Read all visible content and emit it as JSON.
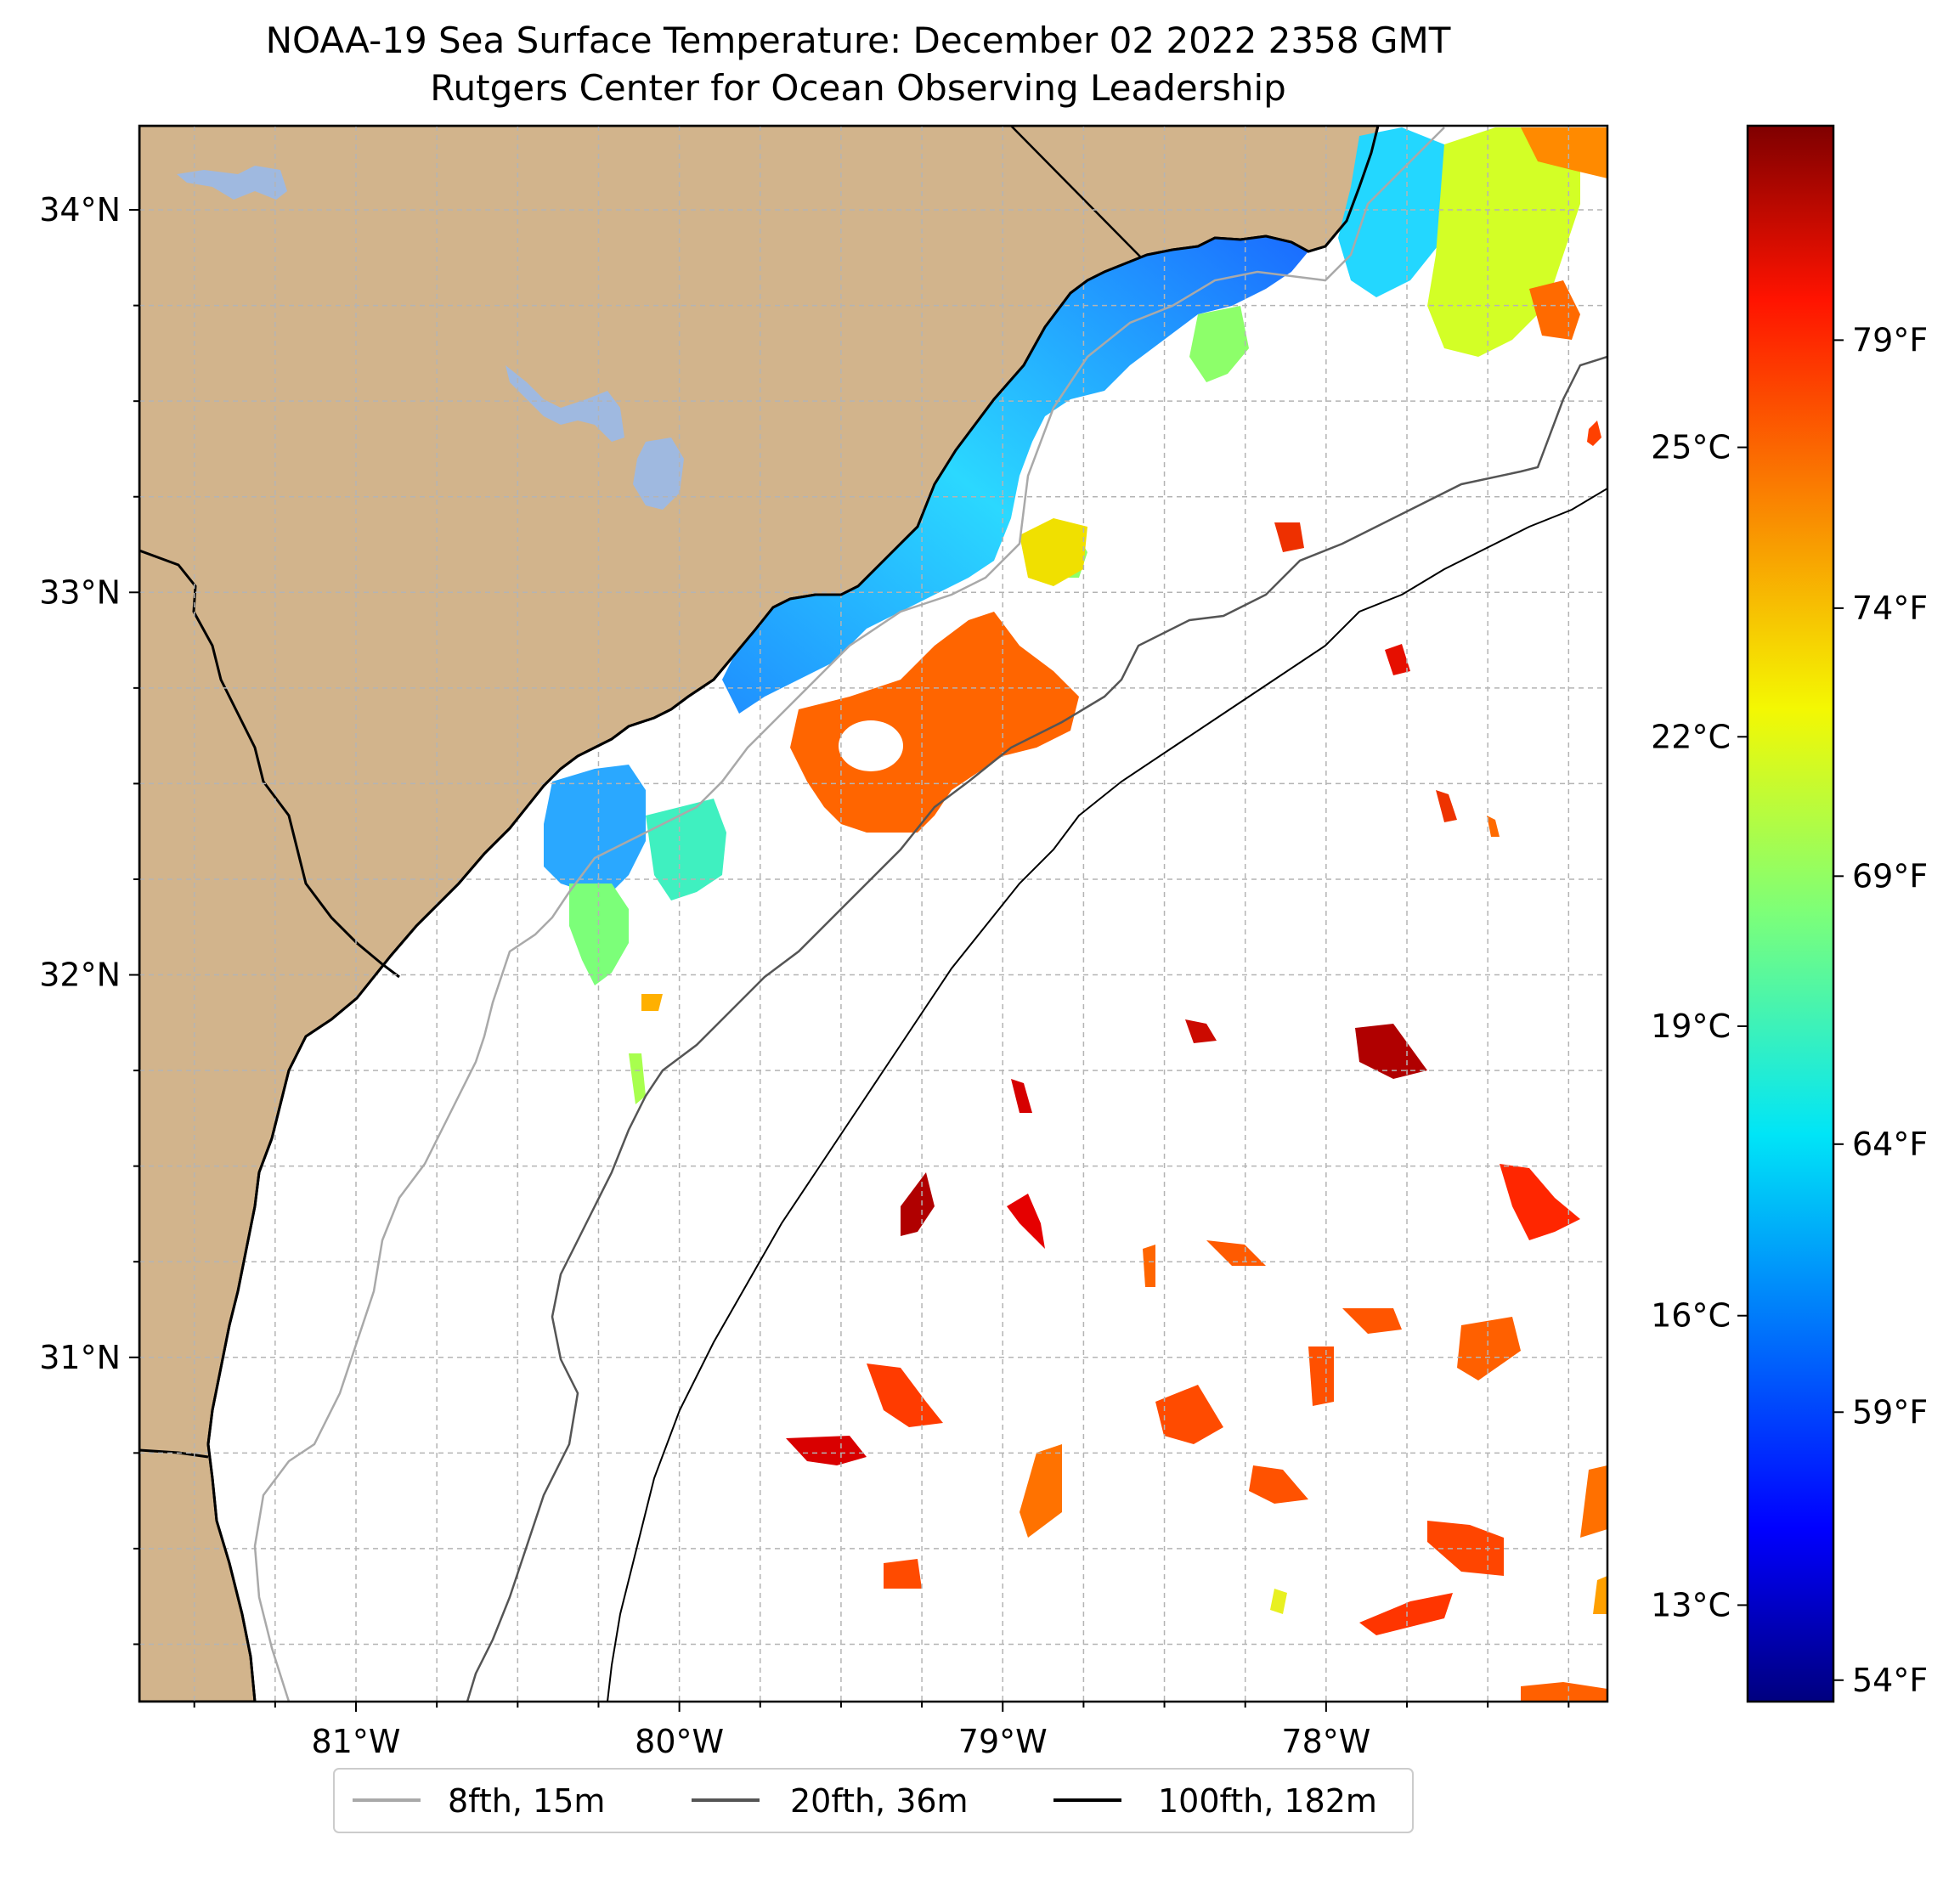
{
  "title": {
    "line1": "NOAA-19 Sea Surface Temperature: December 02 2022 2358 GMT",
    "line2": "Rutgers Center for Ocean Observing Leadership"
  },
  "map": {
    "lon_range": [
      -81.67,
      -77.13
    ],
    "lat_range": [
      30.1,
      34.22
    ],
    "lon_ticks": [
      {
        "value": -81,
        "label": "81°W"
      },
      {
        "value": -80,
        "label": "80°W"
      },
      {
        "value": -79,
        "label": "79°W"
      },
      {
        "value": -78,
        "label": "78°W"
      }
    ],
    "lat_ticks": [
      {
        "value": 31,
        "label": "31°N"
      },
      {
        "value": 32,
        "label": "32°N"
      },
      {
        "value": 33,
        "label": "33°N"
      },
      {
        "value": 34,
        "label": "34°N"
      }
    ],
    "grid_spacing_deg": 0.25,
    "colors": {
      "land": "#d2b48c",
      "water_bodies": "#9fb9e0",
      "coastline": "#000000",
      "grid": "#b4b4b4"
    }
  },
  "legend": {
    "items": [
      {
        "label": "8fth, 15m",
        "color": "#a9a9a9"
      },
      {
        "label": "20fth, 36m",
        "color": "#555555"
      },
      {
        "label": "100fth, 182m",
        "color": "#000000"
      }
    ]
  },
  "colorbar": {
    "colormap": "jet",
    "range_f": [
      53.6,
      83.0
    ],
    "celsius_ticks": [
      {
        "value": 13,
        "label": "13°C"
      },
      {
        "value": 16,
        "label": "16°C"
      },
      {
        "value": 19,
        "label": "19°C"
      },
      {
        "value": 22,
        "label": "22°C"
      },
      {
        "value": 25,
        "label": "25°C"
      }
    ],
    "fahrenheit_ticks": [
      {
        "value": 54,
        "label": "54°F"
      },
      {
        "value": 59,
        "label": "59°F"
      },
      {
        "value": 64,
        "label": "64°F"
      },
      {
        "value": 69,
        "label": "69°F"
      },
      {
        "value": 74,
        "label": "74°F"
      },
      {
        "value": 79,
        "label": "79°F"
      }
    ]
  }
}
